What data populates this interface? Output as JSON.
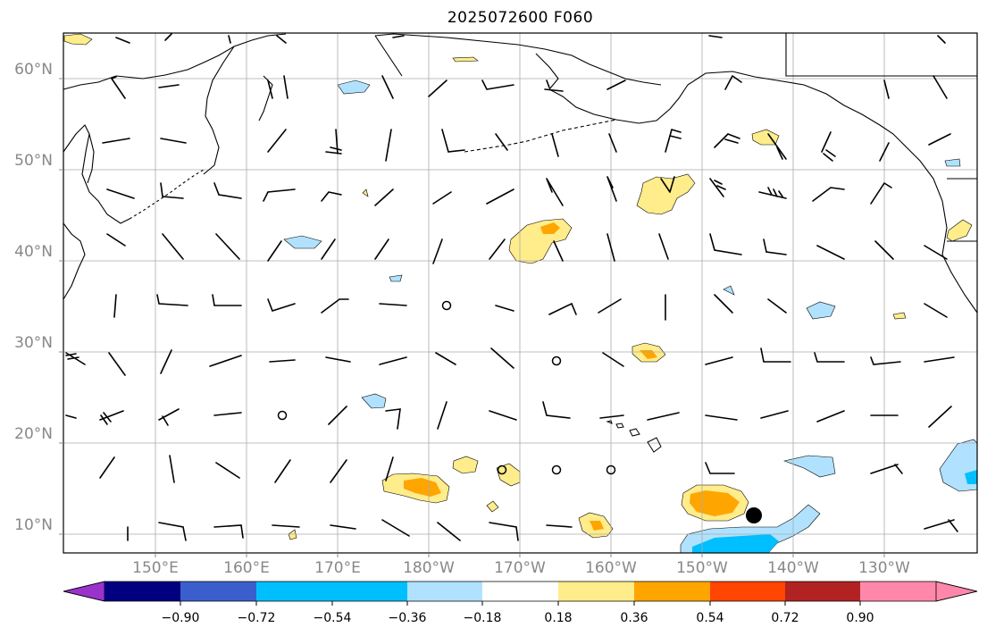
{
  "title": "2025072600 F060",
  "lat_labels": [
    "10°N",
    "20°N",
    "30°N",
    "40°N",
    "50°N",
    "60°N"
  ],
  "lon_labels": [
    "150°E",
    "160°E",
    "170°E",
    "180°W",
    "170°W",
    "160°W",
    "150°W",
    "140°W",
    "130°W"
  ],
  "colorbar": {
    "labels": [
      "−0.90",
      "−0.72",
      "−0.54",
      "−0.36",
      "−0.18",
      "0.18",
      "0.36",
      "0.54",
      "0.72",
      "0.90"
    ],
    "colors": [
      "#9933cc",
      "#000080",
      "#3a5fcd",
      "#00bfff",
      "#b0e2ff",
      "#ffffff",
      "#ffec8b",
      "#ffa500",
      "#ff4500",
      "#b22222",
      "#ff88aa"
    ]
  },
  "fill_colors": {
    "c1": "#ffec8b",
    "c2": "#ffa500",
    "c3": "#ff4500",
    "b1": "#b0e2ff",
    "b2": "#00bfff"
  }
}
